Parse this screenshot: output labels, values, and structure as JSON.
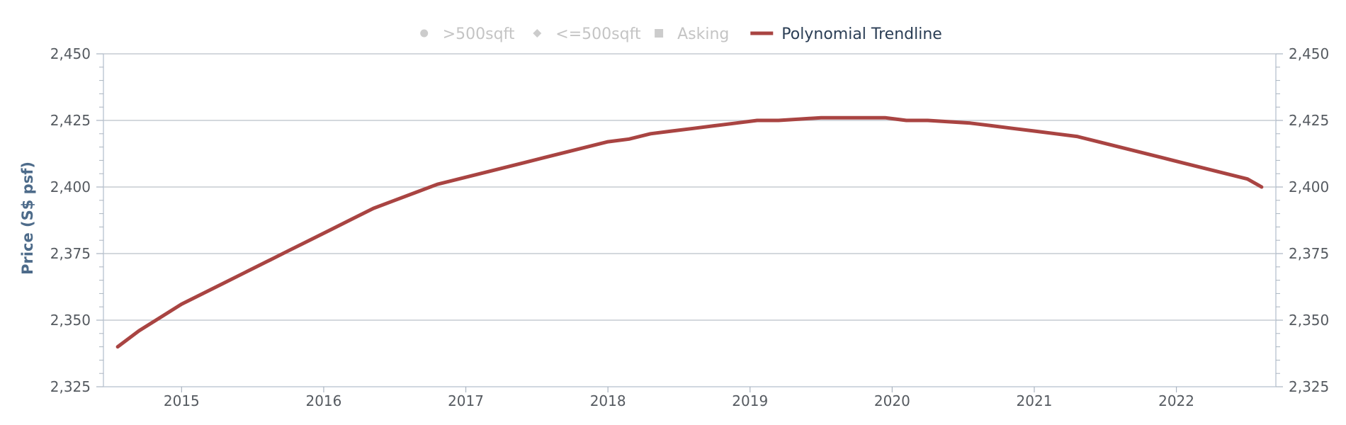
{
  "chart_data": {
    "type": "line",
    "title": "",
    "xlabel": "",
    "ylabel": "Price (S$ psf)",
    "xlim": [
      2014.45,
      2022.7
    ],
    "ylim": [
      2325,
      2450
    ],
    "x_ticks": [
      "2015",
      "2016",
      "2017",
      "2018",
      "2019",
      "2020",
      "2021",
      "2022"
    ],
    "y_ticks": [
      "2,325",
      "2,350",
      "2,375",
      "2,400",
      "2,425",
      "2,450"
    ],
    "y_tick_values": [
      2325,
      2350,
      2375,
      2400,
      2425,
      2450
    ],
    "grid": true,
    "legend_placement": "top",
    "legend": [
      {
        "label": ">500sqft",
        "marker": "circle",
        "active": false
      },
      {
        "label": "<=500sqft",
        "marker": "diamond",
        "active": false
      },
      {
        "label": "Asking",
        "marker": "square",
        "active": false
      },
      {
        "label": "Polynomial Trendline",
        "marker": "line",
        "active": true
      }
    ],
    "series": [
      {
        "name": "Polynomial Trendline",
        "color": "#a94442",
        "x": [
          2014.55,
          2014.7,
          2014.85,
          2015.0,
          2015.15,
          2015.3,
          2015.45,
          2015.6,
          2015.75,
          2015.9,
          2016.05,
          2016.2,
          2016.35,
          2016.5,
          2016.65,
          2016.8,
          2016.95,
          2017.1,
          2017.25,
          2017.4,
          2017.55,
          2017.7,
          2017.85,
          2018.0,
          2018.15,
          2018.3,
          2018.45,
          2018.6,
          2018.75,
          2018.9,
          2019.05,
          2019.2,
          2019.35,
          2019.5,
          2019.65,
          2019.8,
          2019.95,
          2020.1,
          2020.25,
          2020.4,
          2020.55,
          2020.7,
          2020.85,
          2021.0,
          2021.15,
          2021.3,
          2021.45,
          2021.6,
          2021.75,
          2021.9,
          2022.05,
          2022.2,
          2022.35,
          2022.5,
          2022.6
        ],
        "y": [
          2340,
          2346,
          2351,
          2356,
          2360,
          2364,
          2368,
          2372,
          2376,
          2380,
          2384,
          2388,
          2392,
          2395,
          2398,
          2401,
          2403,
          2405,
          2407,
          2409,
          2411,
          2413,
          2415,
          2417,
          2418,
          2420,
          2421,
          2422,
          2423,
          2424,
          2425,
          2425,
          2425.5,
          2426,
          2426,
          2426,
          2426,
          2425,
          2425,
          2424.5,
          2424,
          2423,
          2422,
          2421,
          2420,
          2419,
          2417,
          2415,
          2413,
          2411,
          2409,
          2407,
          2405,
          2403,
          2400
        ]
      }
    ]
  }
}
